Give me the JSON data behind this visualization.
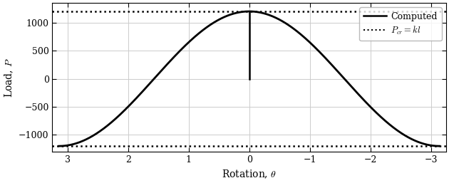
{
  "title": "",
  "xlabel": "Rotation, $\\theta$",
  "ylabel": "Load, $P$",
  "legend_computed": "Computed",
  "legend_pcr": "$P_{cr} = kl$",
  "pcr_value": 1200,
  "neg_pcr_value": -1200,
  "xlim_left": 3.25,
  "xlim_right": -3.25,
  "ylim": [
    -1300,
    1350
  ],
  "yticks": [
    -1000,
    -500,
    0,
    500,
    1000
  ],
  "xticks": [
    3,
    2,
    1,
    0,
    -1,
    -2,
    -3
  ],
  "line_color": "#000000",
  "dotted_color": "#000000",
  "bg_color": "#ffffff",
  "grid_color": "#cccccc",
  "figsize": [
    6.3,
    2.57
  ],
  "dpi": 100
}
